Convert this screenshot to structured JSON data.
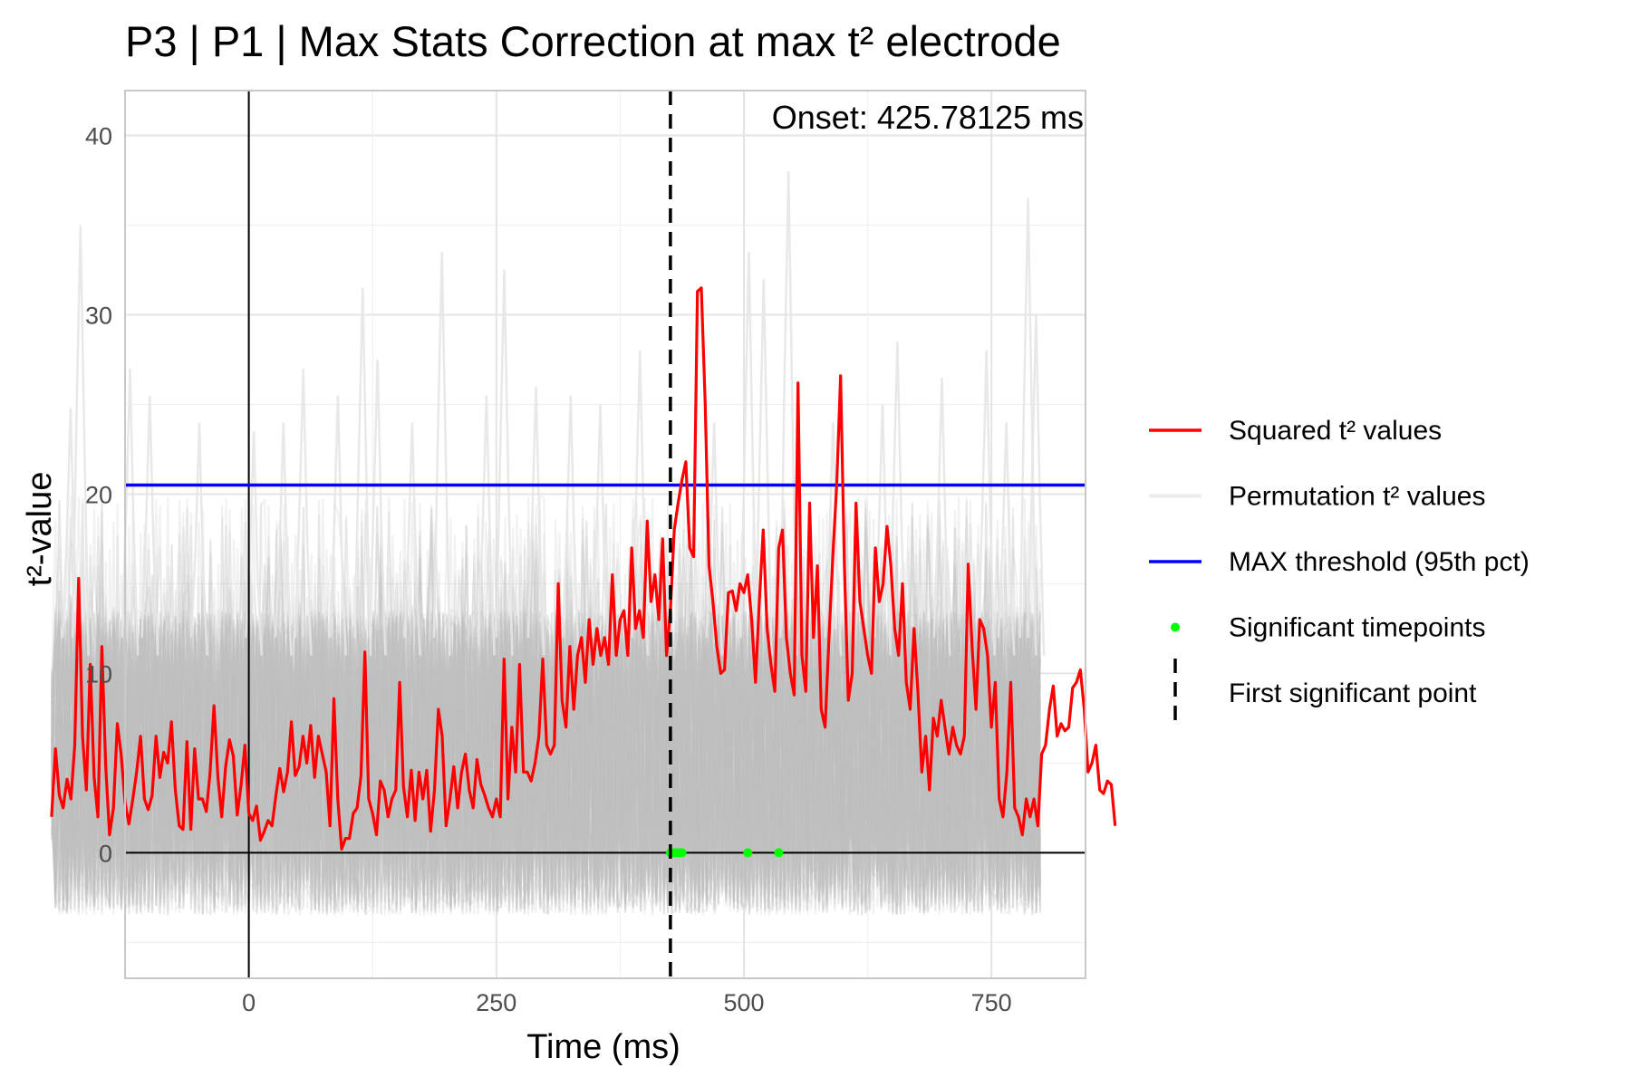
{
  "chart_data": {
    "type": "line",
    "title": "P3 | P1 | Max Stats Correction at max t² electrode",
    "xlabel": "Time (ms)",
    "ylabel": "t²-value",
    "xlim": [
      -125,
      845
    ],
    "ylim": [
      -7,
      42.5
    ],
    "x_ticks": [
      0,
      250,
      500,
      750
    ],
    "y_ticks": [
      0,
      10,
      20,
      30,
      40
    ],
    "grid": true,
    "threshold": {
      "name": "MAX threshold (95th pct)",
      "value": 20.5,
      "color": "#0000ff"
    },
    "onset": {
      "x": 425.78125,
      "label": "Onset: 425.78125 ms"
    },
    "legend": [
      {
        "key": "observed",
        "label": "Squared t² values",
        "type": "line",
        "color": "#ff0000"
      },
      {
        "key": "perm",
        "label": "Permutation t² values",
        "type": "line",
        "color": "#ececec"
      },
      {
        "key": "threshold",
        "label": "MAX threshold (95th pct)",
        "type": "line",
        "color": "#0000ff"
      },
      {
        "key": "sig",
        "label": "Significant timepoints",
        "type": "point",
        "color": "#00ff00"
      },
      {
        "key": "first",
        "label": "First significant point",
        "type": "dashed",
        "color": "#000000"
      }
    ],
    "observed_series": {
      "name": "Squared t² values",
      "color": "#ff0000",
      "x_start": -199.2,
      "x_step": 3.906,
      "values": [
        2.0,
        5.8,
        3.2,
        2.5,
        4.1,
        3.0,
        6.0,
        15.3,
        6.5,
        3.5,
        10.5,
        4.2,
        2.0,
        11.5,
        4.8,
        1.0,
        2.5,
        7.2,
        5.5,
        2.8,
        1.6,
        3.0,
        4.5,
        6.5,
        3.0,
        2.4,
        3.2,
        6.5,
        4.2,
        5.6,
        5.0,
        7.3,
        3.5,
        1.5,
        1.3,
        6.2,
        1.3,
        5.8,
        3.0,
        3.0,
        2.3,
        4.5,
        8.2,
        4.2,
        2.0,
        4.8,
        6.3,
        5.4,
        2.1,
        3.8,
        6.0,
        2.2,
        1.8,
        2.6,
        0.7,
        1.2,
        1.8,
        1.5,
        3.2,
        4.7,
        3.4,
        4.5,
        7.3,
        4.3,
        4.8,
        6.5,
        5.0,
        7.1,
        4.2,
        6.5,
        5.5,
        4.5,
        1.5,
        8.6,
        3.0,
        0.2,
        0.8,
        0.8,
        2.2,
        2.5,
        4.3,
        11.2,
        3.0,
        2.2,
        1.0,
        4.0,
        3.5,
        2.0,
        3.0,
        3.5,
        9.5,
        3.7,
        2.0,
        4.6,
        1.8,
        4.5,
        3.0,
        4.6,
        1.2,
        3.5,
        8.0,
        6.5,
        1.5,
        3.0,
        4.8,
        2.5,
        4.5,
        5.5,
        3.5,
        2.5,
        5.2,
        3.8,
        3.2,
        2.5,
        2.0,
        3.0,
        2.0,
        10.8,
        3.0,
        7.0,
        4.5,
        10.5,
        4.5,
        4.5,
        4.0,
        5.0,
        6.5,
        10.8,
        6.0,
        5.5,
        6.0,
        15.0,
        8.5,
        7.0,
        11.5,
        8.0,
        11.0,
        12.0,
        9.5,
        13.0,
        10.5,
        12.5,
        11.0,
        12.0,
        10.5,
        15.5,
        11.0,
        13.0,
        13.5,
        11.0,
        17.0,
        12.5,
        13.5,
        12.0,
        18.5,
        14.0,
        15.5,
        13.0,
        17.5,
        11.0,
        13.5,
        18.0,
        19.5,
        20.8,
        21.8,
        17.0,
        16.5,
        31.3,
        31.5,
        25.0,
        16.0,
        14.0,
        11.5,
        10.0,
        10.2,
        14.5,
        14.6,
        13.5,
        15.0,
        14.5,
        15.5,
        13.0,
        9.5,
        14.0,
        18.0,
        12.5,
        10.5,
        9.0,
        17.0,
        18.0,
        12.0,
        10.0,
        8.8,
        26.2,
        11.0,
        9.0,
        19.5,
        12.0,
        16.0,
        8.0,
        7.0,
        12.0,
        16.5,
        20.5,
        26.6,
        16.0,
        8.5,
        10.0,
        19.5,
        14.0,
        12.5,
        11.0,
        10.0,
        17.0,
        14.0,
        15.0,
        18.2,
        16.0,
        12.5,
        11.0,
        15.0,
        9.5,
        8.0,
        12.5,
        9.0,
        4.5,
        6.5,
        3.5,
        7.5,
        6.5,
        8.5,
        7.0,
        5.5,
        7.0,
        6.0,
        5.5,
        6.5,
        16.1,
        11.5,
        8.0,
        13.0,
        12.5,
        11.0,
        7.0,
        9.5,
        3.0,
        2.0,
        4.5,
        9.5,
        2.5,
        2.0,
        1.0,
        3.0,
        2.0,
        3.0,
        1.5,
        5.5,
        6.0,
        8.0,
        9.3,
        6.5,
        7.2,
        6.8,
        7.0,
        9.2,
        9.5,
        10.2,
        8.0,
        4.5,
        5.0,
        6.0,
        3.5,
        3.3,
        4.0,
        3.8,
        1.5
      ]
    },
    "permutation_series": {
      "name": "Permutation t² values",
      "color": "#bebebe",
      "x_start": -199.2,
      "x_end": 799.2,
      "band_upper_typical": 13,
      "band_lower_typical": -2.5,
      "spike_peaks": [
        {
          "x": -170,
          "y": 35
        },
        {
          "x": -180,
          "y": 24.8
        },
        {
          "x": -120,
          "y": 27
        },
        {
          "x": -100,
          "y": 25.5
        },
        {
          "x": -50,
          "y": 24
        },
        {
          "x": 5,
          "y": 23.5
        },
        {
          "x": 35,
          "y": 24
        },
        {
          "x": 55,
          "y": 27
        },
        {
          "x": 90,
          "y": 25.5
        },
        {
          "x": 115,
          "y": 31.5
        },
        {
          "x": 130,
          "y": 27.5
        },
        {
          "x": 165,
          "y": 24
        },
        {
          "x": 195,
          "y": 33.5
        },
        {
          "x": 240,
          "y": 25.5
        },
        {
          "x": 258,
          "y": 32.5
        },
        {
          "x": 290,
          "y": 26
        },
        {
          "x": 325,
          "y": 25.5
        },
        {
          "x": 355,
          "y": 25
        },
        {
          "x": 395,
          "y": 28
        },
        {
          "x": 470,
          "y": 24
        },
        {
          "x": 505,
          "y": 33.5
        },
        {
          "x": 520,
          "y": 32
        },
        {
          "x": 545,
          "y": 38
        },
        {
          "x": 590,
          "y": 24
        },
        {
          "x": 640,
          "y": 25
        },
        {
          "x": 655,
          "y": 28.5
        },
        {
          "x": 700,
          "y": 26.5
        },
        {
          "x": 745,
          "y": 28
        },
        {
          "x": 765,
          "y": 24
        },
        {
          "x": 787,
          "y": 36.5
        },
        {
          "x": 795,
          "y": 30
        }
      ]
    },
    "significant_points": {
      "x": [
        425.78,
        429.69,
        433.59,
        437.5,
        503.9,
        535.16
      ],
      "y": [
        0,
        0,
        0,
        0,
        0,
        0
      ]
    }
  }
}
